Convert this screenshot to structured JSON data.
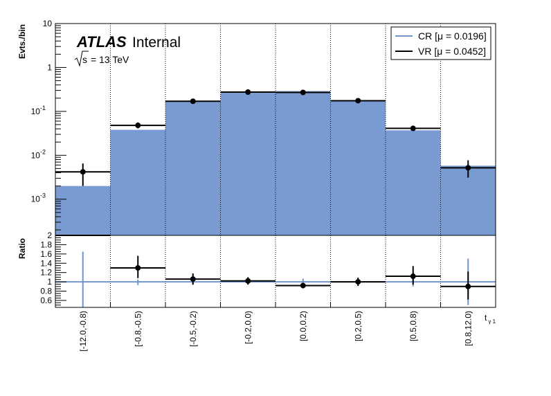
{
  "chart_data": {
    "type": "bar",
    "categories": [
      "[-12.0,-0.8)",
      "[-0.8,-0.5)",
      "[-0.5,-0.2)",
      "[-0.2,0.0)",
      "[0.0,0.2)",
      "[0.2,0.5)",
      "[0.5,0.8)",
      "[0.8,12.0)"
    ],
    "top_panel": {
      "ylabel": "Evts./bin",
      "yscale": "log",
      "ylim": [
        0.00015,
        10
      ],
      "y_ticks": [
        {
          "v": 0.001,
          "base": "10",
          "exp": "-3"
        },
        {
          "v": 0.01,
          "base": "10",
          "exp": "-2"
        },
        {
          "v": 0.1,
          "base": "10",
          "exp": "-1"
        },
        {
          "v": 1,
          "base": "1",
          "exp": ""
        },
        {
          "v": 10,
          "base": "10",
          "exp": ""
        }
      ],
      "series": [
        {
          "name": "CR [μ = 0.0196]",
          "style": "filled-histogram",
          "color": "#7a9bd2",
          "values": [
            0.002,
            0.038,
            0.165,
            0.27,
            0.29,
            0.17,
            0.037,
            0.0058
          ]
        },
        {
          "name": "VR [μ = 0.0452]",
          "style": "step-with-points",
          "color": "#000000",
          "values": [
            0.0042,
            0.048,
            0.17,
            0.275,
            0.27,
            0.175,
            0.041,
            0.0052
          ],
          "err_low": [
            0.0022,
            0.007,
            0.008,
            0.01,
            0.01,
            0.008,
            0.004,
            0.0021
          ],
          "err_high": [
            0.0023,
            0.008,
            0.008,
            0.01,
            0.01,
            0.008,
            0.004,
            0.0025
          ]
        }
      ]
    },
    "ratio_panel": {
      "ylabel": "Ratio",
      "ylim": [
        0.45,
        2.0
      ],
      "y_ticks": [
        "0.6",
        "0.8",
        "1",
        "1.2",
        "1.4",
        "1.6",
        "1.8",
        "2"
      ],
      "reference": 1.0,
      "values": [
        2.1,
        1.3,
        1.06,
        1.02,
        0.92,
        1.0,
        1.12,
        0.9
      ],
      "err_low": [
        0,
        0.22,
        0.12,
        0.08,
        0.06,
        0.09,
        0.18,
        0.28
      ],
      "err_high": [
        0,
        0.26,
        0.12,
        0.08,
        0.06,
        0.09,
        0.22,
        0.32
      ],
      "cr_err_low": [
        0.65,
        0.07,
        0.06,
        0.04,
        0.06,
        0.05,
        0.1,
        0.5
      ],
      "cr_err_high": [
        0.65,
        0.05,
        0.04,
        0.03,
        0.07,
        0.04,
        0.09,
        0.5
      ]
    },
    "xlabel_main": "t",
    "xlabel_sub": "γ 1",
    "grid": "vertical dotted at bin edges",
    "legend_position": "top-right"
  },
  "labels": {
    "atlas": "ATLAS",
    "internal": "Internal",
    "sqrt_s": "s",
    "energy": "= 13 TeV"
  },
  "colors": {
    "cr_fill": "#7a9bd2",
    "cr_line": "#6f95c9",
    "vr": "#000000",
    "frame": "#000000"
  }
}
